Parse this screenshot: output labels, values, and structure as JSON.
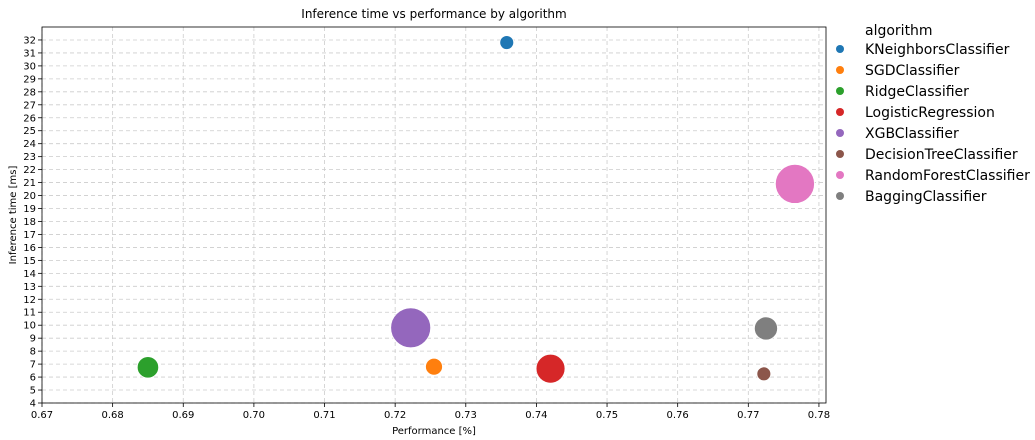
{
  "chart_data": {
    "type": "scatter",
    "title": "Inference time vs performance by algorithm",
    "xlabel": "Performance [%]",
    "ylabel": "Inference time [ms]",
    "xlim": [
      0.67,
      0.781
    ],
    "ylim": [
      4,
      33
    ],
    "xticks": [
      "0.67",
      "0.68",
      "0.69",
      "0.70",
      "0.71",
      "0.72",
      "0.73",
      "0.74",
      "0.75",
      "0.76",
      "0.77",
      "0.78"
    ],
    "yticks": [
      "4",
      "5",
      "6",
      "7",
      "8",
      "9",
      "10",
      "11",
      "12",
      "13",
      "14",
      "15",
      "16",
      "17",
      "18",
      "19",
      "20",
      "21",
      "22",
      "23",
      "24",
      "25",
      "26",
      "27",
      "28",
      "29",
      "30",
      "31",
      "32"
    ],
    "grid": true,
    "legend_placement": "outside-right",
    "legend_title": "algorithm",
    "series": [
      {
        "name": "KNeighborsClassifier",
        "color": "#1f77b4",
        "x": 0.7358,
        "y": 31.8,
        "size": 0.05
      },
      {
        "name": "SGDClassifier",
        "color": "#ff7f0e",
        "x": 0.7255,
        "y": 6.8,
        "size": 0.1
      },
      {
        "name": "RidgeClassifier",
        "color": "#2ca02c",
        "x": 0.685,
        "y": 6.75,
        "size": 0.2
      },
      {
        "name": "LogisticRegression",
        "color": "#d62728",
        "x": 0.742,
        "y": 6.65,
        "size": 0.45
      },
      {
        "name": "XGBClassifier",
        "color": "#9467bd",
        "x": 0.7222,
        "y": 9.8,
        "size": 1.0
      },
      {
        "name": "DecisionTreeClassifier",
        "color": "#8c564b",
        "x": 0.7722,
        "y": 6.25,
        "size": 0.05
      },
      {
        "name": "RandomForestClassifier",
        "color": "#e377c2",
        "x": 0.7766,
        "y": 20.9,
        "size": 0.95
      },
      {
        "name": "BaggingClassifier",
        "color": "#7f7f7f",
        "x": 0.7725,
        "y": 9.75,
        "size": 0.25
      }
    ]
  }
}
